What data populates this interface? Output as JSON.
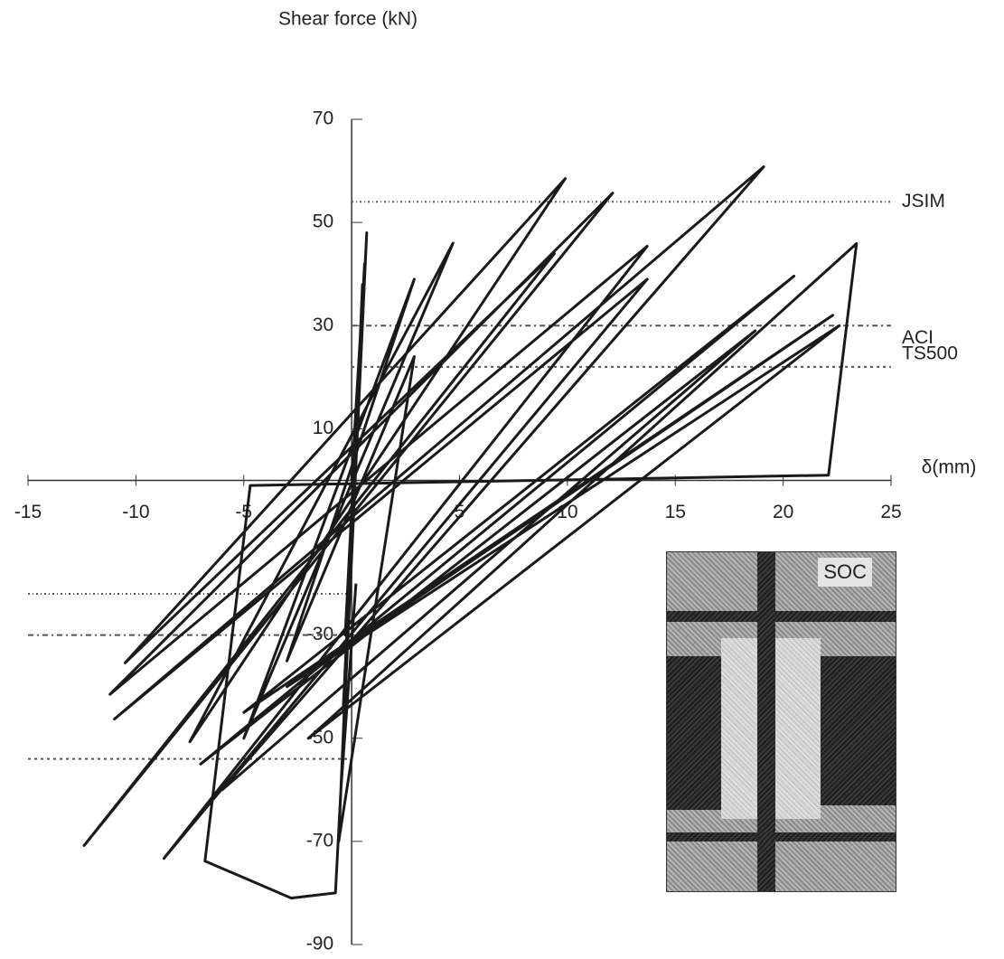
{
  "chart_data": {
    "type": "line",
    "y_label": "Shear force (kN)",
    "x_label": "δ(mm)",
    "xlim": [
      -15,
      25
    ],
    "ylim": [
      -90,
      70
    ],
    "xticks": [
      -15,
      -10,
      -5,
      5,
      10,
      15,
      20,
      25
    ],
    "yticks": [
      -90,
      -70,
      -50,
      -30,
      10,
      30,
      50,
      70
    ],
    "color": "#1a1a1a",
    "x": [
      0,
      0.5,
      -0.3,
      0.6,
      -0.4,
      0.7,
      -0.5,
      0.5,
      -0.6,
      2.9,
      -3,
      2.9,
      -5,
      4.7,
      -7.5,
      9.9,
      -10.5,
      9.4,
      -12.4,
      12.1,
      -11.2,
      13.7,
      -8.7,
      13.7,
      -11,
      19.1,
      -6,
      18.7,
      -7,
      20.5,
      -5,
      22.3,
      -3,
      22.6,
      -2,
      23.4,
      22.1,
      -4.7,
      -6.8,
      -2.8,
      -0.75,
      -0.5,
      0.2
    ],
    "values": [
      0,
      35,
      -30,
      42,
      -45,
      48,
      -60,
      38,
      -70,
      24,
      -35,
      39,
      -50,
      46,
      -50.7,
      58.5,
      -35.4,
      44,
      -70.8,
      55.7,
      -41.5,
      45.4,
      -73.3,
      39,
      -46.3,
      60.8,
      -60,
      29,
      -55,
      39.6,
      -45,
      32,
      -40,
      30,
      -50,
      45.9,
      1,
      -1,
      -73.8,
      -81,
      -80,
      -60,
      -20
    ],
    "reference_lines": [
      {
        "label": "JSIM",
        "y": 54,
        "x": [
          0,
          25
        ]
      },
      {
        "label": "ACI",
        "y": 30,
        "x": [
          0,
          25
        ]
      },
      {
        "label": "TS500",
        "y": 22,
        "x": [
          0,
          25
        ]
      },
      {
        "y": -22,
        "x": [
          -15,
          0
        ]
      },
      {
        "y": -30,
        "x": [
          -15,
          0
        ]
      },
      {
        "y": -54,
        "x": [
          -15,
          0
        ]
      }
    ],
    "inset_label": "SOC"
  }
}
